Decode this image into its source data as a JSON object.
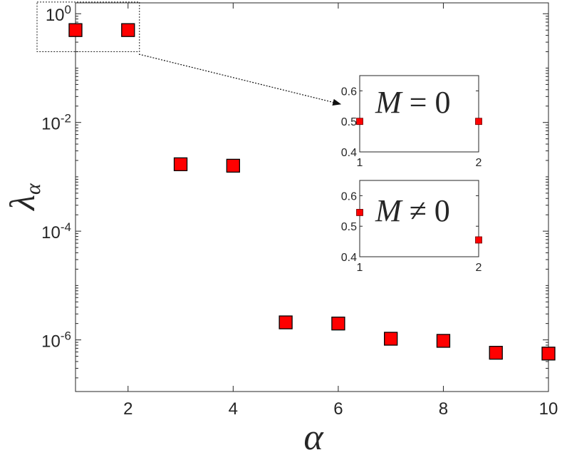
{
  "chart_data": [
    {
      "type": "scatter",
      "xlabel": "α",
      "ylabel_symbol": "λ",
      "ylabel_sub": "α",
      "yscale": "log",
      "xlim": [
        1,
        10
      ],
      "ylim": [
        1e-07,
        2
      ],
      "xticks": [
        "2",
        "4",
        "6",
        "8",
        "10"
      ],
      "yticks": [
        {
          "base": "10",
          "exp": "0"
        },
        {
          "base": "10",
          "exp": "-2"
        },
        {
          "base": "10",
          "exp": "-4"
        },
        {
          "base": "10",
          "exp": "-6"
        }
      ],
      "marker": "square",
      "marker_color": "#ff0000",
      "series": [
        {
          "x": [
            1,
            2,
            3,
            4,
            5,
            6,
            7,
            8,
            9,
            10
          ],
          "y": [
            0.5,
            0.5,
            0.0017,
            0.0016,
            2.1e-06,
            2e-06,
            1.05e-06,
            9.6e-07,
            5.8e-07,
            5.6e-07
          ]
        }
      ],
      "zoom_region": {
        "x": [
          1,
          2
        ],
        "y": [
          0.2,
          1.5
        ]
      }
    },
    {
      "type": "scatter",
      "inset": true,
      "label": "M = 0",
      "xlim": [
        1,
        2
      ],
      "ylim": [
        0.4,
        0.65
      ],
      "xticks": [
        "1",
        "2"
      ],
      "yticks": [
        "0.4",
        "0.5",
        "0.6"
      ],
      "series": [
        {
          "x": [
            1,
            2
          ],
          "y": [
            0.5,
            0.5
          ]
        }
      ]
    },
    {
      "type": "scatter",
      "inset": true,
      "label": "M ≠ 0",
      "xlim": [
        1,
        2
      ],
      "ylim": [
        0.4,
        0.65
      ],
      "xticks": [
        "1",
        "2"
      ],
      "yticks": [
        "0.4",
        "0.5",
        "0.6"
      ],
      "series": [
        {
          "x": [
            1,
            2
          ],
          "y": [
            0.545,
            0.455
          ]
        }
      ]
    }
  ]
}
